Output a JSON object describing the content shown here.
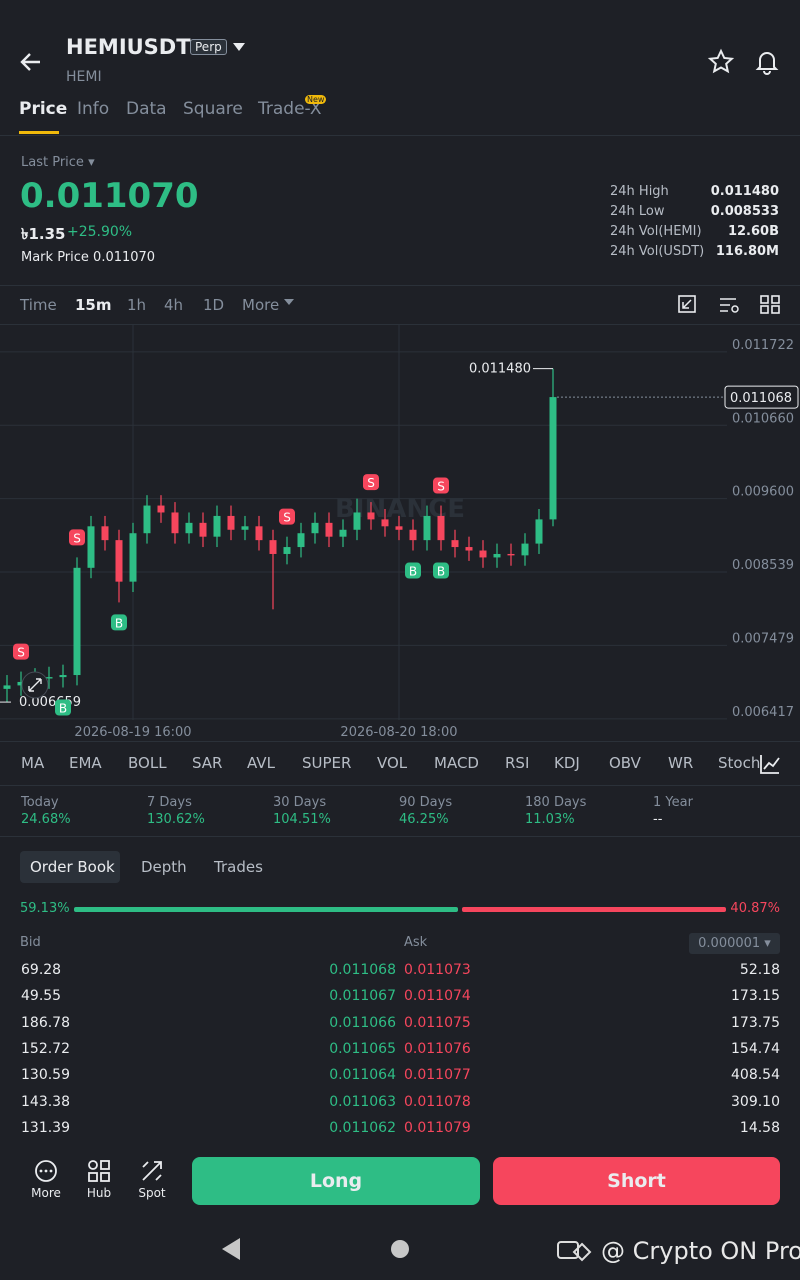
{
  "header": {
    "symbol": "HEMIUSDT",
    "contract": "Perp",
    "base": "HEMI"
  },
  "tabs": {
    "items": [
      "Price",
      "Info",
      "Data",
      "Square",
      "Trade-X"
    ],
    "badge": "New"
  },
  "price": {
    "label": "Last Price",
    "last": "0.011070",
    "fiat": "৳1.35",
    "change": "+25.90%",
    "mark_label": "Mark Price",
    "mark": "0.011070"
  },
  "stats": [
    {
      "label": "24h High",
      "value": "0.011480"
    },
    {
      "label": "24h Low",
      "value": "0.008533"
    },
    {
      "label": "24h Vol(HEMI)",
      "value": "12.60B"
    },
    {
      "label": "24h Vol(USDT)",
      "value": "116.80M"
    }
  ],
  "intervals": [
    "Time",
    "15m",
    "1h",
    "4h",
    "1D",
    "More"
  ],
  "chart_data": {
    "type": "candlestick",
    "watermark": "BINANCE",
    "categories": [
      null,
      null,
      null,
      null,
      null,
      null,
      null,
      null,
      null,
      "2026-08-19 16:00",
      null,
      null,
      null,
      null,
      null,
      null,
      null,
      null,
      null,
      null,
      null,
      null,
      null,
      null,
      null,
      null,
      null,
      null,
      "2026-08-20 18:00",
      null,
      null,
      null,
      null,
      null,
      null,
      null,
      null,
      null,
      null,
      null
    ],
    "open": [
      0.00685,
      0.0069,
      0.00695,
      0.007,
      0.00702,
      0.00705,
      0.0086,
      0.0092,
      0.009,
      0.0084,
      0.0091,
      0.0095,
      0.0094,
      0.0091,
      0.00925,
      0.00905,
      0.00935,
      0.00915,
      0.0092,
      0.009,
      0.0088,
      0.0089,
      0.0091,
      0.00925,
      0.00905,
      0.00915,
      0.0094,
      0.0093,
      0.0092,
      0.00915,
      0.009,
      0.00935,
      0.009,
      0.0089,
      0.00885,
      0.00875,
      0.0088,
      0.00878,
      0.00895,
      0.0093
    ],
    "high": [
      0.00705,
      0.0071,
      0.00715,
      0.00717,
      0.0072,
      0.00875,
      0.00935,
      0.00935,
      0.00915,
      0.00925,
      0.00965,
      0.00965,
      0.00955,
      0.0094,
      0.0094,
      0.0095,
      0.0095,
      0.00935,
      0.00935,
      0.00915,
      0.00905,
      0.00925,
      0.0094,
      0.0094,
      0.0093,
      0.0096,
      0.00955,
      0.00945,
      0.00935,
      0.0093,
      0.0095,
      0.0095,
      0.00915,
      0.00905,
      0.009,
      0.00895,
      0.00895,
      0.0091,
      0.00945,
      0.01148
    ],
    "low": [
      0.006659,
      0.00675,
      0.0068,
      0.00685,
      0.00687,
      0.0069,
      0.00845,
      0.00885,
      0.0081,
      0.00825,
      0.00895,
      0.00925,
      0.00895,
      0.00895,
      0.0089,
      0.0089,
      0.009,
      0.009,
      0.00885,
      0.008,
      0.00865,
      0.00875,
      0.00895,
      0.0089,
      0.0089,
      0.009,
      0.00915,
      0.00905,
      0.009,
      0.00885,
      0.00885,
      0.00885,
      0.00875,
      0.0087,
      0.0086,
      0.0086,
      0.00863,
      0.00863,
      0.0088,
      0.0092
    ],
    "close": [
      0.0069,
      0.00695,
      0.007,
      0.00702,
      0.00705,
      0.0086,
      0.0092,
      0.009,
      0.0084,
      0.0091,
      0.0095,
      0.0094,
      0.0091,
      0.00925,
      0.00905,
      0.00935,
      0.00915,
      0.0092,
      0.009,
      0.0088,
      0.0089,
      0.0091,
      0.00925,
      0.00905,
      0.00915,
      0.0094,
      0.0093,
      0.0092,
      0.00915,
      0.009,
      0.00935,
      0.009,
      0.0089,
      0.00885,
      0.00875,
      0.0088,
      0.00878,
      0.00895,
      0.0093,
      0.011068
    ],
    "colors": {
      "up": "#2ebd85",
      "down": "#f6465d"
    },
    "ylim": [
      0.0064,
      0.01211
    ],
    "yticks": [
      0.011722,
      {
        "value": 0.01066,
        "label": "0.010660"
      },
      {
        "value": 0.0096,
        "label": "0.009600"
      },
      0.008539,
      0.007479,
      0.006417
    ],
    "grid": true,
    "current_price": 0.011068,
    "high_marker": {
      "value": 0.01148,
      "label": "0.011480"
    },
    "low_marker": {
      "value": 0.006659,
      "label": "0.006659"
    },
    "trade_markers": [
      {
        "side": "S",
        "candle": 1
      },
      {
        "side": "B",
        "candle": 4
      },
      {
        "side": "S",
        "candle": 5
      },
      {
        "side": "B",
        "candle": 8
      },
      {
        "side": "S",
        "candle": 20
      },
      {
        "side": "S",
        "candle": 26
      },
      {
        "side": "B",
        "candle": 29
      },
      {
        "side": "S",
        "candle": 31
      },
      {
        "side": "B",
        "candle": 31
      }
    ]
  },
  "indicators": [
    "MA",
    "EMA",
    "BOLL",
    "SAR",
    "AVL",
    "SUPER",
    "VOL",
    "MACD",
    "RSI",
    "KDJ",
    "OBV",
    "WR",
    "Stoch"
  ],
  "performance": [
    {
      "label": "Today",
      "value": "24.68%"
    },
    {
      "label": "7 Days",
      "value": "130.62%"
    },
    {
      "label": "30 Days",
      "value": "104.51%"
    },
    {
      "label": "90 Days",
      "value": "46.25%"
    },
    {
      "label": "180 Days",
      "value": "11.03%"
    },
    {
      "label": "1 Year",
      "value": "--"
    }
  ],
  "book_tabs": [
    "Order Book",
    "Depth",
    "Trades"
  ],
  "ratio": {
    "bid": {
      "value": 59.13,
      "label": "59.13%"
    },
    "ask": {
      "value": 40.87,
      "label": "40.87%"
    }
  },
  "book": {
    "bid_header": "Bid",
    "ask_header": "Ask",
    "precision": "0.000001",
    "rows": [
      [
        "69.28",
        "0.011068",
        "0.011073",
        "52.18"
      ],
      [
        "49.55",
        "0.011067",
        "0.011074",
        "173.15"
      ],
      [
        "186.78",
        "0.011066",
        "0.011075",
        "173.75"
      ],
      [
        "152.72",
        "0.011065",
        "0.011076",
        "154.74"
      ],
      [
        "130.59",
        "0.011064",
        "0.011077",
        "408.54"
      ],
      [
        "143.38",
        "0.011063",
        "0.011078",
        "309.10"
      ],
      [
        "131.39",
        "0.011062",
        "0.011079",
        "14.58"
      ]
    ]
  },
  "bottom": {
    "items": [
      "More",
      "Hub",
      "Spot"
    ],
    "long": "Long",
    "short": "Short"
  },
  "watermark": "@ Crypto ON Pro"
}
